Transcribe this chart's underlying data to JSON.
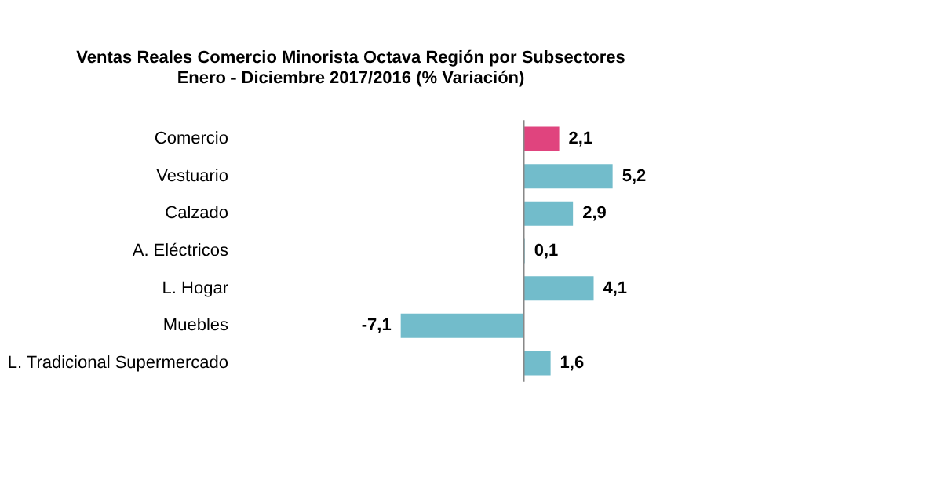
{
  "chart_data": {
    "type": "bar",
    "orientation": "horizontal",
    "title": "Ventas Reales Comercio Minorista Octava Región por Subsectores\nEnero - Diciembre 2017/2016 (% Variación)",
    "categories": [
      "Comercio",
      "Vestuario",
      "Calzado",
      "A. Eléctricos",
      "L. Hogar",
      "Muebles",
      "L. Tradicional Supermercado"
    ],
    "values": [
      2.1,
      5.2,
      2.9,
      0.1,
      4.1,
      -7.1,
      1.6
    ],
    "colors": [
      "#e0447e",
      "#72bccb",
      "#72bccb",
      "#72bccb",
      "#72bccb",
      "#72bccb",
      "#72bccb"
    ],
    "value_labels": [
      "2,1",
      "5,2",
      "2,9",
      "0,1",
      "4,1",
      "-7,1",
      "1,6"
    ],
    "grid": false,
    "legend": false
  }
}
